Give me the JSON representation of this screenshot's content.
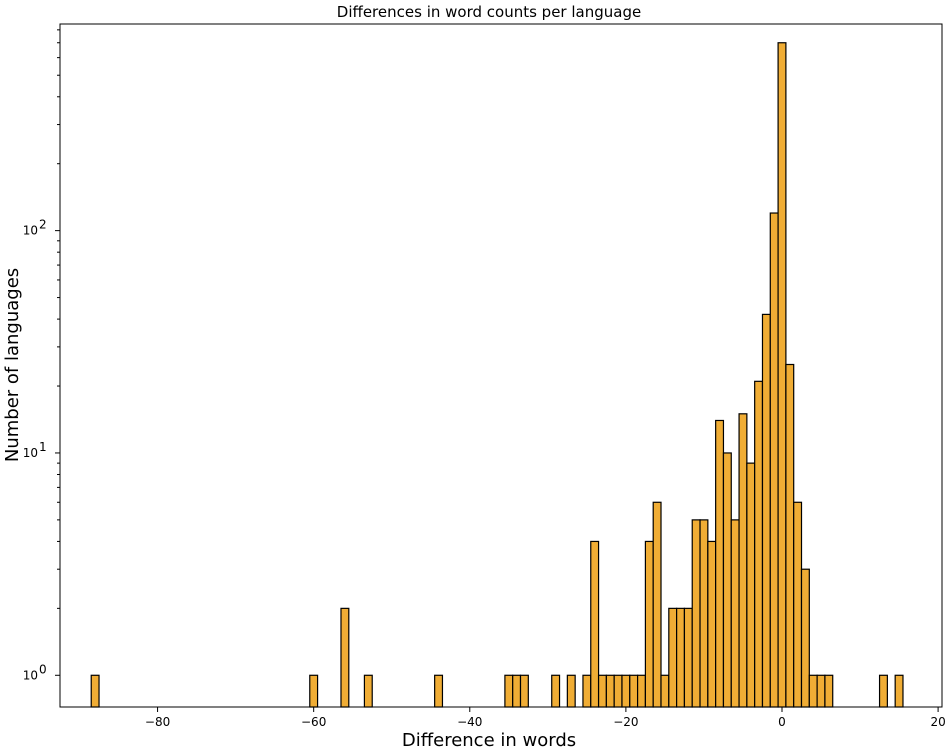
{
  "chart_data": {
    "type": "bar",
    "title": "Differences in word counts per language",
    "xlabel": "Difference in words",
    "ylabel": "Number of languages",
    "yscale": "log",
    "xlim": [
      -92.5,
      20.5
    ],
    "ylim": [
      0.72,
      850
    ],
    "xticks": [
      {
        "value": -80,
        "label": "−80"
      },
      {
        "value": -60,
        "label": "−60"
      },
      {
        "value": -40,
        "label": "−40"
      },
      {
        "value": -20,
        "label": "−20"
      },
      {
        "value": 0,
        "label": "0"
      },
      {
        "value": 20,
        "label": "20"
      }
    ],
    "yticks": [
      {
        "value": 1,
        "base": "10",
        "exp": "0"
      },
      {
        "value": 10,
        "base": "10",
        "exp": "1"
      },
      {
        "value": 100,
        "base": "10",
        "exp": "2"
      }
    ],
    "grid": false,
    "bar_color": "#f0ad35",
    "edge_color": "#000000",
    "x": [
      -88,
      -60,
      -56,
      -53,
      -44,
      -35,
      -34,
      -33,
      -29,
      -27,
      -25,
      -24,
      -23,
      -22,
      -21,
      -20,
      -19,
      -18,
      -17,
      -16,
      -15,
      -14,
      -13,
      -12,
      -11,
      -10,
      -9,
      -8,
      -7,
      -6,
      -5,
      -4,
      -3,
      -2,
      -1,
      0,
      1,
      2,
      3,
      4,
      5,
      6,
      13,
      15
    ],
    "values": [
      1,
      1,
      2,
      1,
      1,
      1,
      1,
      1,
      1,
      1,
      1,
      4,
      1,
      1,
      1,
      1,
      1,
      1,
      4,
      6,
      1,
      2,
      2,
      2,
      5,
      5,
      4,
      14,
      10,
      5,
      15,
      9,
      21,
      42,
      120,
      700,
      25,
      6,
      3,
      1,
      1,
      1,
      1,
      1
    ]
  }
}
